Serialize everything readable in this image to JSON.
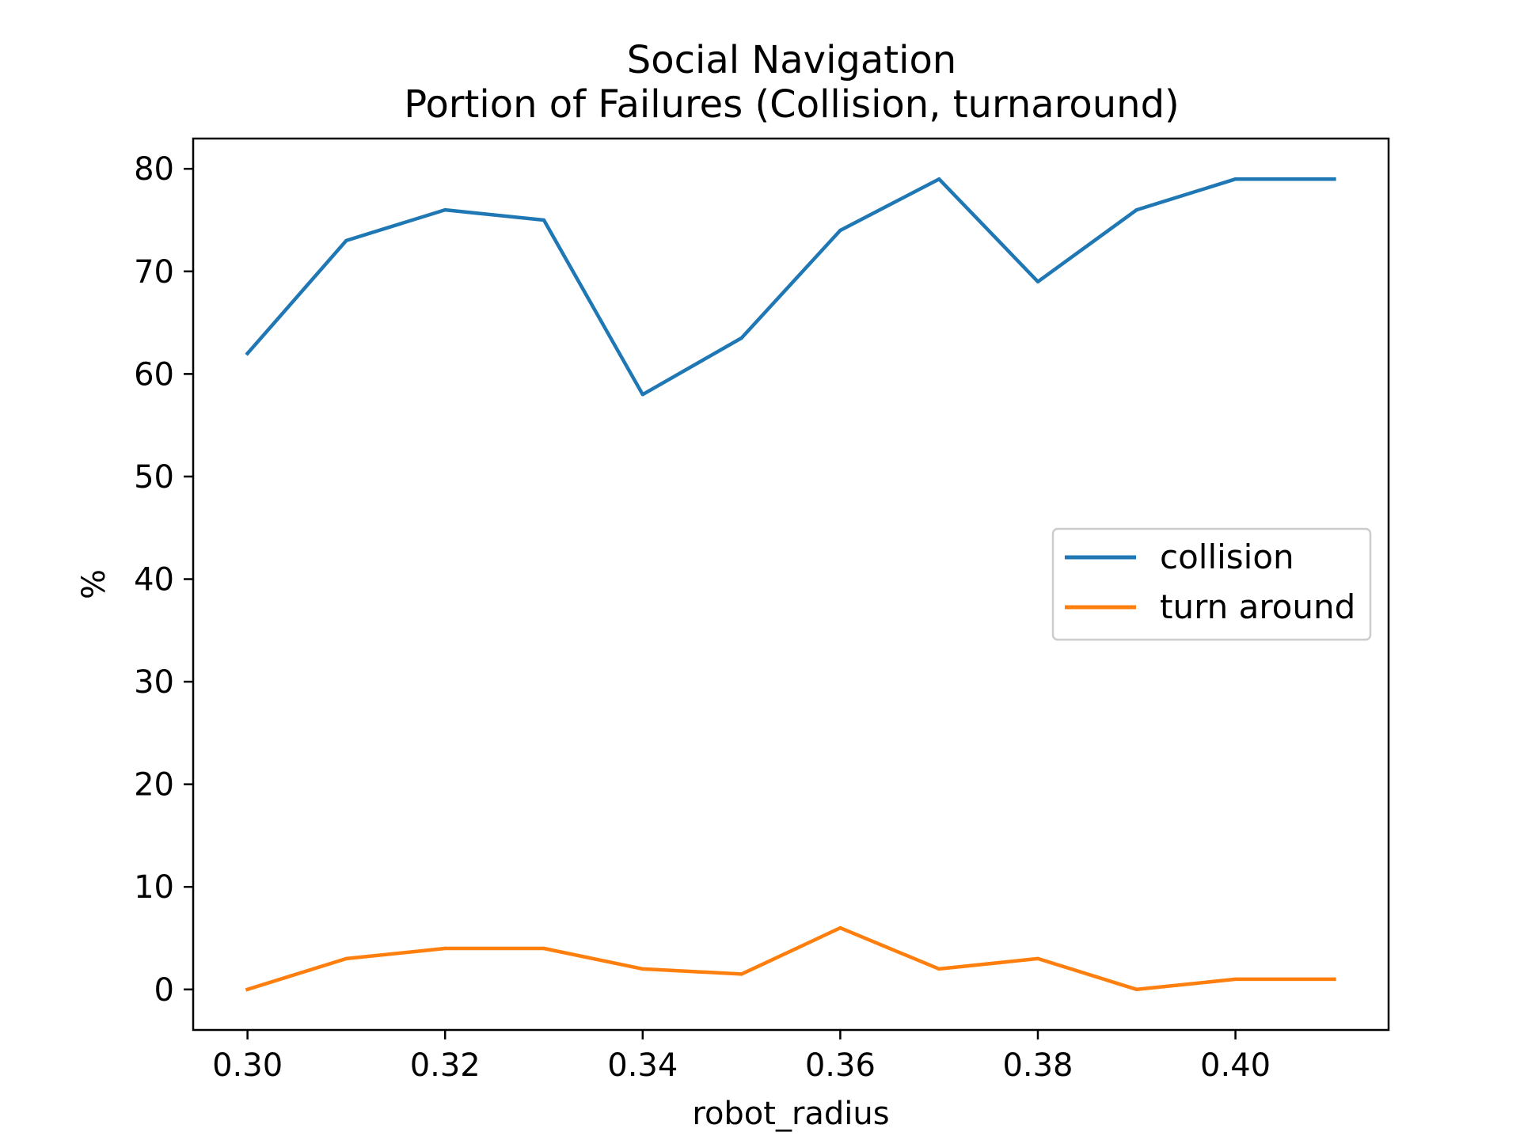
{
  "chart_data": {
    "type": "line",
    "title_lines": [
      "Social Navigation",
      "Portion of Failures (Collision, turnaround)"
    ],
    "xlabel": "robot_radius",
    "ylabel": "%",
    "x": [
      0.3,
      0.31,
      0.32,
      0.33,
      0.34,
      0.35,
      0.36,
      0.37,
      0.38,
      0.39,
      0.4,
      0.41
    ],
    "xlim": [
      0.2945,
      0.4155
    ],
    "ylim": [
      -3.95,
      82.95
    ],
    "xticks": [
      0.3,
      0.32,
      0.34,
      0.36,
      0.38,
      0.4
    ],
    "xtick_labels": [
      "0.30",
      "0.32",
      "0.34",
      "0.36",
      "0.38",
      "0.40"
    ],
    "yticks": [
      0,
      10,
      20,
      30,
      40,
      50,
      60,
      70,
      80
    ],
    "ytick_labels": [
      "0",
      "10",
      "20",
      "30",
      "40",
      "50",
      "60",
      "70",
      "80"
    ],
    "grid": false,
    "legend_position": "center-right",
    "series": [
      {
        "name": "collision",
        "color": "#1f77b4",
        "values": [
          62,
          73,
          76,
          75,
          58,
          63.5,
          74,
          79,
          69,
          76,
          79,
          79
        ]
      },
      {
        "name": "turn around",
        "color": "#ff7f0e",
        "values": [
          0,
          3,
          4,
          4,
          2,
          1.5,
          6,
          2,
          3,
          0,
          1,
          1
        ]
      }
    ]
  }
}
